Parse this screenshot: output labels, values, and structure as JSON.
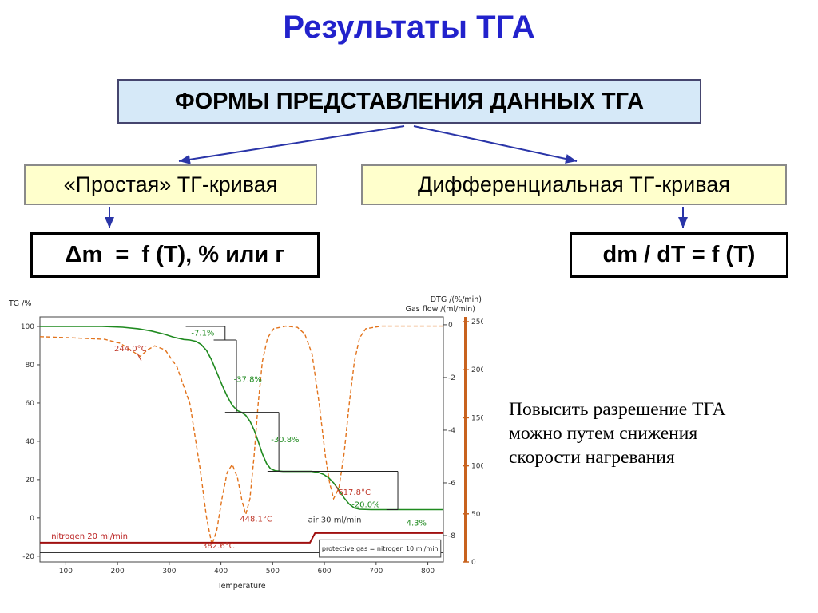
{
  "title": "Результаты ТГА",
  "flowchart": {
    "root": "ФОРМЫ ПРЕДСТАВЛЕНИЯ ДАННЫХ ТГА",
    "left_branch": "«Простая» ТГ-кривая",
    "right_branch": "Дифференциальная ТГ-кривая",
    "left_formula": "Δm  =  f (T), % или г",
    "right_formula": "dm / dT = f (T)"
  },
  "note": {
    "lines": [
      "Повысить разрешение ТГА",
      "можно путем снижения",
      "скорости нагревания"
    ]
  },
  "colors": {
    "title_blue": "#2222cc",
    "arrow_blue": "#2a35a8",
    "root_box_bg": "#d6e9f8",
    "branch_bg": "#ffffcc",
    "tg_green": "#1f8a1f",
    "dtg_orange": "#e2731c",
    "temp_label_red": "#c0392b",
    "nitrogen_red": "#a01010",
    "flow_axis_orange": "#c8621e"
  },
  "chart_data": {
    "type": "line",
    "mass_loss_steps_percent": [
      -7.1,
      -37.8,
      -30.8,
      -20.0
    ],
    "residue_percent": 4.3,
    "dtg_peak_temperatures_c": [
      244.0,
      382.6,
      448.1,
      617.8
    ],
    "gas_program": [
      "nitrogen 20 ml/min",
      "air 30 ml/min",
      "protective gas = nitrogen 10 ml/min"
    ],
    "axes": {
      "x": {
        "label": "Temperature",
        "min": 50,
        "max": 830,
        "ticks": [
          100,
          200,
          300,
          400,
          500,
          600,
          700,
          800
        ]
      },
      "tg": {
        "label": "TG /%",
        "min": -23,
        "max": 105,
        "ticks": [
          100,
          80,
          60,
          40,
          20,
          0,
          -20
        ]
      },
      "dtg": {
        "label": "DTG /(%/min)",
        "min": -9.0,
        "max": 0.3,
        "ticks": [
          0,
          -2,
          -4,
          -6,
          -8
        ]
      },
      "flow": {
        "label": "Gas flow /(ml/min)",
        "min": 0,
        "max": 255,
        "ticks": [
          250,
          200,
          150,
          100,
          50,
          0
        ]
      }
    },
    "series": [
      {
        "name": "tg-curve",
        "axis": "tg",
        "color": "#1f8a1f",
        "width": 1.6,
        "dash": null,
        "points": [
          [
            50,
            100
          ],
          [
            170,
            100
          ],
          [
            210,
            99.6
          ],
          [
            240,
            98.8
          ],
          [
            265,
            97.6
          ],
          [
            290,
            96
          ],
          [
            310,
            94.3
          ],
          [
            328,
            93.2
          ],
          [
            340,
            92.9
          ],
          [
            352,
            92.2
          ],
          [
            362,
            90.5
          ],
          [
            372,
            87.5
          ],
          [
            382,
            82.5
          ],
          [
            392,
            76
          ],
          [
            402,
            69.5
          ],
          [
            412,
            63.5
          ],
          [
            422,
            58.8
          ],
          [
            432,
            56
          ],
          [
            440,
            55.1
          ],
          [
            448,
            53.5
          ],
          [
            456,
            50.5
          ],
          [
            464,
            46
          ],
          [
            472,
            40
          ],
          [
            480,
            33.5
          ],
          [
            488,
            28.5
          ],
          [
            496,
            25.6
          ],
          [
            505,
            24.6
          ],
          [
            520,
            24.3
          ],
          [
            575,
            24.3
          ],
          [
            588,
            23.8
          ],
          [
            598,
            22.8
          ],
          [
            608,
            21
          ],
          [
            618,
            18.2
          ],
          [
            628,
            14.5
          ],
          [
            638,
            10.5
          ],
          [
            648,
            7.2
          ],
          [
            658,
            5.2
          ],
          [
            668,
            4.5
          ],
          [
            690,
            4.3
          ],
          [
            830,
            4.3
          ]
        ]
      },
      {
        "name": "dtg-curve",
        "axis": "dtg",
        "color": "#e2731c",
        "width": 1.4,
        "dash": "5 3",
        "points": [
          [
            50,
            -0.45
          ],
          [
            120,
            -0.5
          ],
          [
            175,
            -0.55
          ],
          [
            205,
            -0.7
          ],
          [
            225,
            -0.95
          ],
          [
            244,
            -1.2
          ],
          [
            258,
            -0.95
          ],
          [
            272,
            -0.8
          ],
          [
            292,
            -0.95
          ],
          [
            315,
            -1.6
          ],
          [
            340,
            -3.0
          ],
          [
            360,
            -5.5
          ],
          [
            372,
            -7.3
          ],
          [
            382.6,
            -8.35
          ],
          [
            392,
            -7.8
          ],
          [
            402,
            -6.6
          ],
          [
            412,
            -5.6
          ],
          [
            422,
            -5.3
          ],
          [
            432,
            -5.8
          ],
          [
            441,
            -6.7
          ],
          [
            448.1,
            -7.2
          ],
          [
            456,
            -6.6
          ],
          [
            464,
            -5.0
          ],
          [
            472,
            -3.0
          ],
          [
            480,
            -1.4
          ],
          [
            490,
            -0.5
          ],
          [
            502,
            -0.15
          ],
          [
            525,
            -0.05
          ],
          [
            548,
            -0.1
          ],
          [
            562,
            -0.35
          ],
          [
            576,
            -1.1
          ],
          [
            590,
            -3.0
          ],
          [
            602,
            -5.0
          ],
          [
            610,
            -6.0
          ],
          [
            617.8,
            -6.6
          ],
          [
            628,
            -6.2
          ],
          [
            638,
            -4.9
          ],
          [
            648,
            -3.0
          ],
          [
            658,
            -1.4
          ],
          [
            668,
            -0.5
          ],
          [
            680,
            -0.15
          ],
          [
            710,
            -0.05
          ],
          [
            830,
            -0.05
          ]
        ]
      },
      {
        "name": "purge-gas-flow",
        "axis": "flow",
        "color": "#a01010",
        "width": 2,
        "dash": null,
        "points": [
          [
            50,
            20
          ],
          [
            572,
            20
          ],
          [
            582,
            30
          ],
          [
            830,
            30
          ]
        ]
      },
      {
        "name": "protective-gas-flow",
        "axis": "flow",
        "color": "#1a1a1a",
        "width": 1.8,
        "dash": null,
        "points": [
          [
            50,
            10
          ],
          [
            830,
            10
          ]
        ]
      }
    ],
    "markers": [
      {
        "pts": [
          [
            332,
            100
          ],
          [
            408,
            100
          ]
        ]
      },
      {
        "pts": [
          [
            408,
            100
          ],
          [
            408,
            92.9
          ]
        ]
      },
      {
        "pts": [
          [
            386,
            92.9
          ],
          [
            430,
            92.9
          ]
        ]
      },
      {
        "pts": [
          [
            430,
            92.9
          ],
          [
            430,
            55.1
          ]
        ]
      },
      {
        "pts": [
          [
            408,
            55.1
          ],
          [
            512,
            55.1
          ]
        ]
      },
      {
        "pts": [
          [
            512,
            55.1
          ],
          [
            512,
            24.3
          ]
        ]
      },
      {
        "pts": [
          [
            490,
            24.3
          ],
          [
            742,
            24.3
          ]
        ]
      },
      {
        "pts": [
          [
            742,
            24.3
          ],
          [
            742,
            4.3
          ]
        ]
      },
      {
        "pts": [
          [
            720,
            4.3
          ],
          [
            742,
            4.3
          ]
        ]
      },
      {
        "pts": [
          [
            238,
            86
          ],
          [
            246,
            82
          ]
        ],
        "color": "#c0392b"
      },
      {
        "pts": [
          [
            630,
            13
          ],
          [
            621,
            17
          ]
        ],
        "color": "#c0392b"
      }
    ],
    "annotations": [
      {
        "text": "-7.1%",
        "color": "#1f8a1f",
        "t": 365,
        "v": 95.2
      },
      {
        "text": "244.0°C",
        "color": "#c0392b",
        "t": 225,
        "v": 87
      },
      {
        "text": "-37.8%",
        "color": "#1f8a1f",
        "t": 452,
        "v": 71
      },
      {
        "text": "382.6°C",
        "color": "#c0392b",
        "t": 395,
        "v": -16
      },
      {
        "text": "448.1°C",
        "color": "#c0392b",
        "t": 468,
        "v": -2
      },
      {
        "text": "-30.8%",
        "color": "#1f8a1f",
        "t": 524,
        "v": 39.5
      },
      {
        "text": "617.8°C",
        "color": "#c0392b",
        "t": 658,
        "v": 12
      },
      {
        "text": "-20.0%",
        "color": "#1f8a1f",
        "t": 680,
        "v": 5.5
      },
      {
        "text": "4.3%",
        "color": "#1f8a1f",
        "t": 778,
        "v": -4
      },
      {
        "text": "nitrogen 20 ml/min",
        "color": "#bb2222",
        "axis": "flow",
        "t": 72,
        "v": 24,
        "anchor": "start",
        "size": 8.5
      },
      {
        "text": "air 30 ml/min",
        "color": "#333333",
        "axis": "flow",
        "t": 620,
        "v": 41,
        "size": 8.5
      }
    ],
    "flow_box": {
      "text": "protective gas = nitrogen 10 ml/min",
      "t1": 590,
      "t2": 825,
      "v_top": 23,
      "v_bot": 5,
      "size": 8
    }
  }
}
